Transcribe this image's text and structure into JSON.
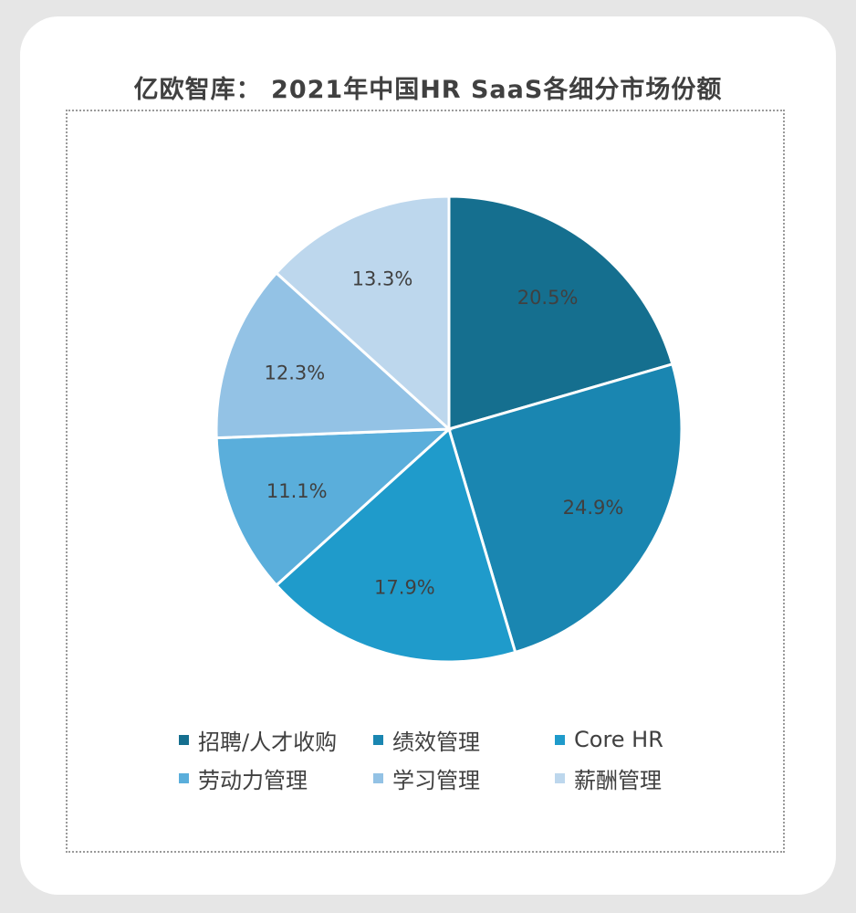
{
  "chart_data": {
    "type": "pie",
    "title": "亿欧智库： 2021年中国HR SaaS各细分市场份额",
    "legend_position": "bottom",
    "slices": [
      {
        "name": "招聘/人才收购",
        "value": 20.5,
        "label": "20.5%",
        "color": "#156f8f"
      },
      {
        "name": "绩效管理",
        "value": 24.9,
        "label": "24.9%",
        "color": "#1a86b1"
      },
      {
        "name": "Core HR",
        "value": 17.9,
        "label": "17.9%",
        "color": "#1f9bcb"
      },
      {
        "name": "劳动力管理",
        "value": 11.1,
        "label": "11.1%",
        "color": "#5aaedb"
      },
      {
        "name": "学习管理",
        "value": 12.3,
        "label": "12.3%",
        "color": "#93c2e5"
      },
      {
        "name": "薪酬管理",
        "value": 13.3,
        "label": "13.3%",
        "color": "#bdd7ed"
      }
    ]
  }
}
